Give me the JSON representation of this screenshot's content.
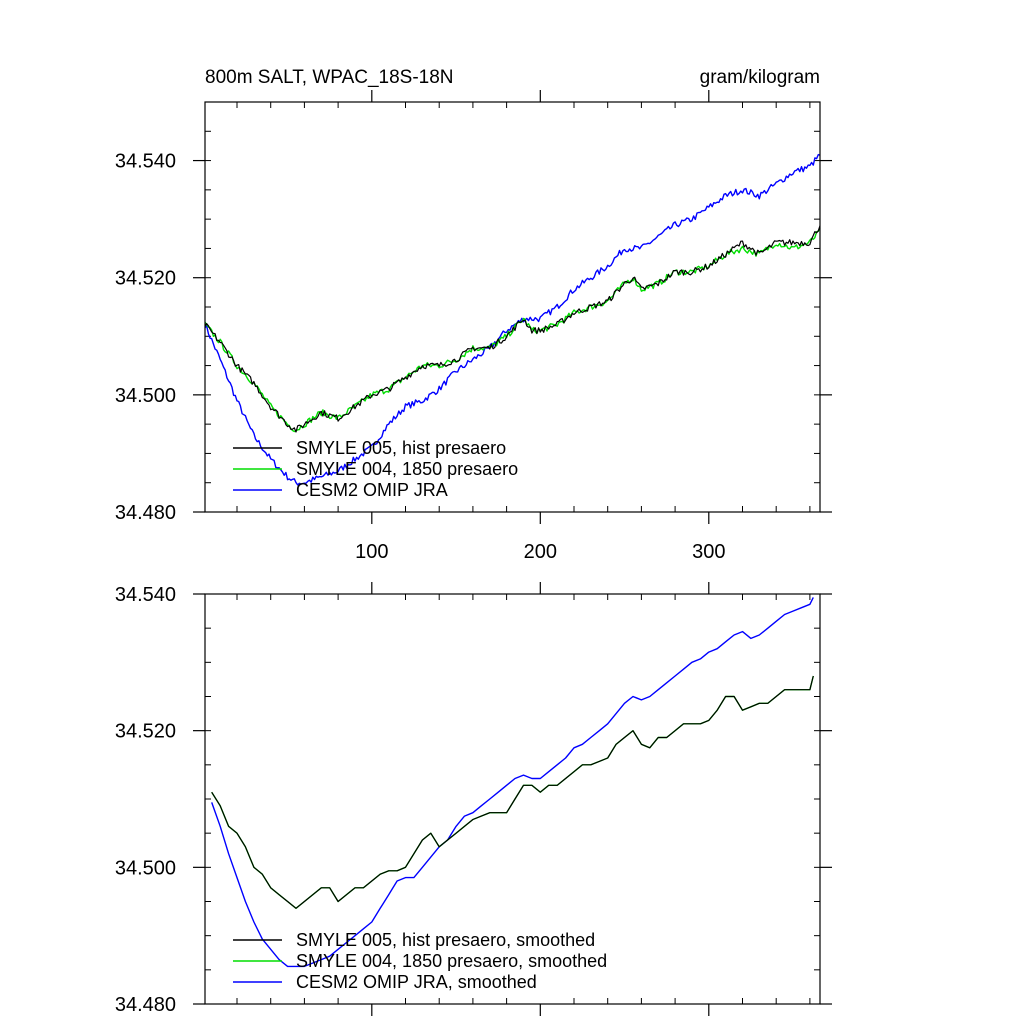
{
  "colors": {
    "hist": "#000000",
    "p1850": "#00dd00",
    "omip": "#0000ff",
    "axis": "#000000"
  },
  "chart_data": [
    {
      "type": "line",
      "title_left": "800m SALT, WPAC_18S-18N",
      "title_right": "gram/kilogram",
      "xlim": [
        1,
        366
      ],
      "ylim": [
        34.48,
        34.55
      ],
      "x_ticks": [
        100,
        200,
        300
      ],
      "x_tick_labels": [
        "100",
        "200",
        "300"
      ],
      "y_ticks": [
        34.48,
        34.5,
        34.52,
        34.54
      ],
      "y_tick_labels": [
        "34.480",
        "34.500",
        "34.520",
        "34.540"
      ],
      "legend_position": "bottom-left",
      "noisy": true,
      "series": [
        {
          "name": "SMYLE 005, hist presaero",
          "color": "#000000",
          "x": [
            1,
            10,
            20,
            30,
            40,
            50,
            55,
            60,
            70,
            80,
            90,
            100,
            110,
            120,
            130,
            140,
            150,
            160,
            170,
            180,
            190,
            195,
            200,
            210,
            220,
            230,
            240,
            250,
            255,
            260,
            270,
            280,
            290,
            300,
            310,
            320,
            330,
            340,
            350,
            360,
            366
          ],
          "y": [
            34.512,
            34.509,
            34.505,
            34.502,
            34.498,
            34.495,
            34.494,
            34.495,
            34.497,
            34.496,
            34.498,
            34.5,
            34.501,
            34.503,
            34.505,
            34.505,
            34.506,
            34.508,
            34.508,
            34.51,
            34.513,
            34.511,
            34.511,
            34.512,
            34.514,
            34.515,
            34.516,
            34.519,
            34.52,
            34.518,
            34.519,
            34.521,
            34.521,
            34.522,
            34.524,
            34.526,
            34.524,
            34.526,
            34.526,
            34.526,
            34.529
          ]
        },
        {
          "name": "SMYLE 004, 1850 presaero",
          "color": "#00dd00",
          "x": [
            1,
            10,
            20,
            30,
            40,
            50,
            55,
            60,
            70,
            80,
            90,
            100,
            110,
            120,
            130,
            140,
            150,
            160,
            170,
            180,
            190,
            195,
            200,
            210,
            220,
            230,
            240,
            250,
            255,
            260,
            270,
            280,
            290,
            300,
            310,
            320,
            330,
            340,
            350,
            360,
            366
          ],
          "y": [
            34.512,
            34.509,
            34.505,
            34.502,
            34.498,
            34.495,
            34.494,
            34.495,
            34.497,
            34.496,
            34.498,
            34.5,
            34.501,
            34.503,
            34.505,
            34.505,
            34.506,
            34.508,
            34.508,
            34.51,
            34.513,
            34.511,
            34.511,
            34.512,
            34.514,
            34.515,
            34.516,
            34.519,
            34.52,
            34.518,
            34.519,
            34.521,
            34.521,
            34.522,
            34.524,
            34.525,
            34.524,
            34.526,
            34.525,
            34.526,
            34.528
          ]
        },
        {
          "name": "CESM2 OMIP JRA",
          "color": "#0000ff",
          "x": [
            1,
            10,
            20,
            30,
            40,
            50,
            55,
            60,
            70,
            80,
            90,
            100,
            110,
            120,
            130,
            140,
            150,
            160,
            170,
            180,
            190,
            200,
            210,
            220,
            230,
            240,
            250,
            260,
            270,
            280,
            290,
            300,
            310,
            320,
            330,
            340,
            350,
            360,
            366
          ],
          "y": [
            34.512,
            34.506,
            34.499,
            34.493,
            34.489,
            34.486,
            34.485,
            34.485,
            34.486,
            34.487,
            34.489,
            34.491,
            34.495,
            34.498,
            34.499,
            34.501,
            34.504,
            34.506,
            34.508,
            34.511,
            34.513,
            34.513,
            34.515,
            34.518,
            34.52,
            34.522,
            34.525,
            34.525,
            34.527,
            34.529,
            34.53,
            34.532,
            34.534,
            34.535,
            34.534,
            34.536,
            34.538,
            34.539,
            34.541
          ]
        }
      ]
    },
    {
      "type": "line",
      "xlim": [
        1,
        366
      ],
      "ylim": [
        34.48,
        34.54
      ],
      "x_ticks": [
        100,
        200,
        300
      ],
      "x_tick_labels": [],
      "y_ticks": [
        34.48,
        34.5,
        34.52,
        34.54
      ],
      "y_tick_labels": [
        "34.480",
        "34.500",
        "34.520",
        "34.540"
      ],
      "legend_position": "bottom-left",
      "noisy": false,
      "series": [
        {
          "name": "SMYLE 005, hist presaero, smoothed",
          "color": "#000000",
          "x": [
            5,
            10,
            15,
            20,
            25,
            30,
            35,
            40,
            45,
            50,
            55,
            60,
            65,
            70,
            75,
            80,
            85,
            90,
            95,
            100,
            105,
            110,
            115,
            120,
            125,
            130,
            135,
            140,
            145,
            150,
            155,
            160,
            165,
            170,
            175,
            180,
            185,
            190,
            195,
            200,
            205,
            210,
            215,
            220,
            225,
            230,
            235,
            240,
            245,
            250,
            255,
            260,
            265,
            270,
            275,
            280,
            285,
            290,
            295,
            300,
            305,
            310,
            315,
            320,
            325,
            330,
            335,
            340,
            345,
            350,
            355,
            360,
            362
          ],
          "y": [
            34.511,
            34.509,
            34.506,
            34.505,
            34.503,
            34.5,
            34.499,
            34.497,
            34.496,
            34.495,
            34.494,
            34.495,
            34.496,
            34.497,
            34.497,
            34.495,
            34.496,
            34.497,
            34.497,
            34.498,
            34.499,
            34.4995,
            34.4995,
            34.5,
            34.502,
            34.504,
            34.505,
            34.503,
            34.504,
            34.505,
            34.506,
            34.507,
            34.5075,
            34.508,
            34.508,
            34.508,
            34.51,
            34.512,
            34.512,
            34.511,
            34.512,
            34.512,
            34.513,
            34.514,
            34.515,
            34.515,
            34.5155,
            34.516,
            34.518,
            34.519,
            34.52,
            34.518,
            34.5175,
            34.519,
            34.519,
            34.52,
            34.521,
            34.521,
            34.521,
            34.5215,
            34.523,
            34.525,
            34.525,
            34.523,
            34.5235,
            34.524,
            34.524,
            34.525,
            34.526,
            34.526,
            34.526,
            34.526,
            34.528
          ]
        },
        {
          "name": "SMYLE 004, 1850 presaero, smoothed",
          "color": "#00dd00",
          "x": [
            5,
            10,
            15,
            20,
            25,
            30,
            35,
            40,
            45,
            50,
            55,
            60,
            65,
            70,
            75,
            80,
            85,
            90,
            95,
            100,
            105,
            110,
            115,
            120,
            125,
            130,
            135,
            140,
            145,
            150,
            155,
            160,
            165,
            170,
            175,
            180,
            185,
            190,
            195,
            200,
            205,
            210,
            215,
            220,
            225,
            230,
            235,
            240,
            245,
            250,
            255,
            260,
            265,
            270,
            275,
            280,
            285,
            290,
            295,
            300,
            305,
            310,
            315,
            320,
            325,
            330,
            335,
            340,
            345,
            350,
            355,
            360,
            362
          ],
          "y": [
            34.511,
            34.509,
            34.506,
            34.505,
            34.503,
            34.5,
            34.499,
            34.497,
            34.496,
            34.495,
            34.494,
            34.495,
            34.496,
            34.497,
            34.497,
            34.495,
            34.496,
            34.497,
            34.497,
            34.498,
            34.499,
            34.4995,
            34.4995,
            34.5,
            34.502,
            34.504,
            34.505,
            34.503,
            34.504,
            34.505,
            34.506,
            34.507,
            34.5075,
            34.508,
            34.508,
            34.508,
            34.51,
            34.512,
            34.512,
            34.511,
            34.512,
            34.512,
            34.513,
            34.514,
            34.515,
            34.515,
            34.5155,
            34.516,
            34.518,
            34.519,
            34.52,
            34.518,
            34.5175,
            34.519,
            34.519,
            34.52,
            34.521,
            34.521,
            34.521,
            34.5215,
            34.523,
            34.525,
            34.525,
            34.523,
            34.5235,
            34.524,
            34.524,
            34.525,
            34.526,
            34.526,
            34.526,
            34.526,
            34.528
          ]
        },
        {
          "name": "CESM2 OMIP JRA, smoothed",
          "color": "#0000ff",
          "x": [
            5,
            10,
            15,
            20,
            25,
            30,
            35,
            40,
            45,
            50,
            55,
            60,
            65,
            70,
            75,
            80,
            85,
            90,
            95,
            100,
            105,
            110,
            115,
            120,
            125,
            130,
            135,
            140,
            145,
            150,
            155,
            160,
            165,
            170,
            175,
            180,
            185,
            190,
            195,
            200,
            205,
            210,
            215,
            220,
            225,
            230,
            235,
            240,
            245,
            250,
            255,
            260,
            265,
            270,
            275,
            280,
            285,
            290,
            295,
            300,
            305,
            310,
            315,
            320,
            325,
            330,
            335,
            340,
            345,
            350,
            355,
            360,
            362
          ],
          "y": [
            34.5095,
            34.506,
            34.502,
            34.4985,
            34.495,
            34.492,
            34.4895,
            34.488,
            34.4865,
            34.4855,
            34.4855,
            34.4855,
            34.486,
            34.4865,
            34.487,
            34.488,
            34.489,
            34.49,
            34.491,
            34.492,
            34.494,
            34.496,
            34.498,
            34.4985,
            34.4985,
            34.5,
            34.5015,
            34.503,
            34.504,
            34.506,
            34.5075,
            34.508,
            34.509,
            34.51,
            34.511,
            34.512,
            34.513,
            34.5135,
            34.513,
            34.513,
            34.514,
            34.515,
            34.516,
            34.5175,
            34.518,
            34.519,
            34.52,
            34.521,
            34.5225,
            34.524,
            34.525,
            34.5245,
            34.525,
            34.526,
            34.527,
            34.528,
            34.529,
            34.53,
            34.5305,
            34.5315,
            34.532,
            34.533,
            34.534,
            34.5345,
            34.5335,
            34.534,
            34.535,
            34.536,
            34.537,
            34.5375,
            34.538,
            34.5385,
            34.5395
          ]
        }
      ]
    }
  ]
}
